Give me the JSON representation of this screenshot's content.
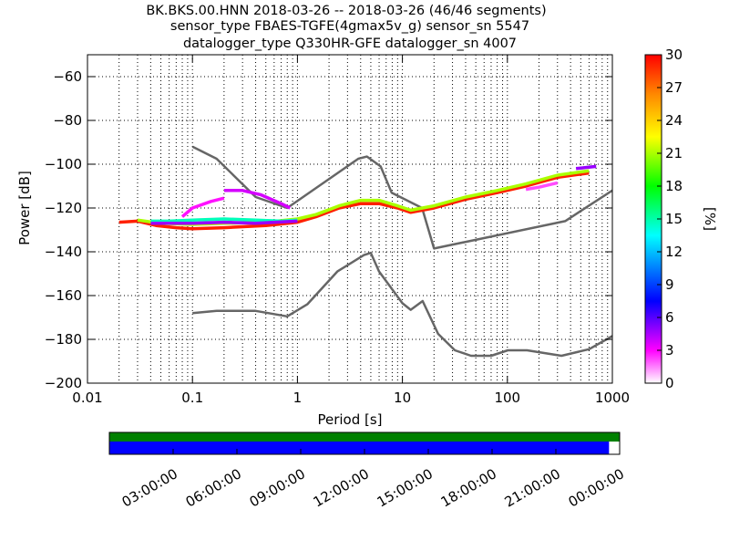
{
  "title": {
    "line1": "BK.BKS.00.HNN   2018-03-26 -- 2018-03-26  (46/46 segments)",
    "line2": "sensor_type FBAES-TGFE(4gmax5v_g) sensor_sn 5547",
    "line3": "datalogger_type Q330HR-GFE datalogger_sn 4007"
  },
  "chart_data": [
    {
      "type": "heatmap",
      "title": "BK.BKS.00.HNN   2018-03-26 -- 2018-03-26  (46/46 segments)",
      "xlabel": "Period [s]",
      "ylabel": "Power [dB]",
      "xscale": "log",
      "xlim": [
        0.01,
        1000
      ],
      "ylim": [
        -200,
        -50
      ],
      "xtick_labels": [
        "0.01",
        "0.1",
        "1",
        "10",
        "100",
        "1000"
      ],
      "xtick_values": [
        0.01,
        0.1,
        1,
        10,
        100,
        1000
      ],
      "ytick_values": [
        -200,
        -180,
        -160,
        -140,
        -120,
        -100,
        -80,
        -60
      ],
      "ytick_labels": [
        "−200",
        "−180",
        "−160",
        "−140",
        "−120",
        "−100",
        "−80",
        "−60"
      ],
      "grid": "dotted",
      "colorbar": {
        "label": "[%]",
        "range": [
          0,
          30
        ],
        "tick_values": [
          0,
          3,
          6,
          9,
          12,
          15,
          18,
          21,
          24,
          27,
          30
        ],
        "tick_labels": [
          "0",
          "3",
          "6",
          "9",
          "12",
          "15",
          "18",
          "21",
          "24",
          "27",
          "30"
        ]
      },
      "noise_models": [
        {
          "points": [
            [
              0.1,
              -92
            ],
            [
              0.17,
              -97.5
            ],
            [
              0.4,
              -115
            ],
            [
              0.8,
              -120
            ],
            [
              3.8,
              -97.5
            ],
            [
              4.6,
              -96.5
            ],
            [
              6.2,
              -101
            ],
            [
              7.9,
              -113
            ],
            [
              15.4,
              -120
            ],
            [
              20,
              -138.5
            ],
            [
              354.8,
              -126
            ],
            [
              1000,
              -112
            ]
          ]
        },
        {
          "points": [
            [
              0.1,
              -168
            ],
            [
              0.17,
              -167
            ],
            [
              0.4,
              -167
            ],
            [
              0.8,
              -169.5
            ],
            [
              1.24,
              -164
            ],
            [
              2.4,
              -149
            ],
            [
              4.3,
              -141.5
            ],
            [
              5,
              -140.5
            ],
            [
              6,
              -149
            ],
            [
              10,
              -163.5
            ],
            [
              12,
              -166.5
            ],
            [
              15.6,
              -162.5
            ],
            [
              21.9,
              -177.5
            ],
            [
              31.6,
              -185
            ],
            [
              45,
              -187.5
            ],
            [
              70,
              -187.5
            ],
            [
              101,
              -185
            ],
            [
              154,
              -185
            ],
            [
              328,
              -187.5
            ],
            [
              600,
              -184.5
            ],
            [
              1000,
              -178.5
            ]
          ]
        }
      ],
      "psd_bands": [
        {
          "color_pct": 29,
          "points": [
            [
              0.02,
              -126.5
            ],
            [
              0.03,
              -126
            ],
            [
              0.045,
              -128
            ],
            [
              0.07,
              -129
            ],
            [
              0.1,
              -129.5
            ],
            [
              0.2,
              -129
            ],
            [
              0.5,
              -128
            ],
            [
              1,
              -126.5
            ],
            [
              1.5,
              -124
            ],
            [
              2.5,
              -120
            ],
            [
              4,
              -118
            ],
            [
              6,
              -118
            ],
            [
              9,
              -120
            ],
            [
              12,
              -122
            ],
            [
              20,
              -120
            ],
            [
              40,
              -116
            ],
            [
              80,
              -113
            ],
            [
              150,
              -110
            ],
            [
              300,
              -106
            ],
            [
              600,
              -104
            ]
          ]
        },
        {
          "color_pct": 20,
          "points": [
            [
              0.03,
              -125.5
            ],
            [
              0.05,
              -127
            ],
            [
              0.1,
              -127.5
            ],
            [
              0.2,
              -127
            ],
            [
              0.5,
              -126.5
            ],
            [
              1,
              -125
            ],
            [
              1.5,
              -123
            ],
            [
              2.5,
              -119
            ],
            [
              4,
              -116.5
            ],
            [
              6,
              -116.5
            ],
            [
              9,
              -119
            ],
            [
              12,
              -121
            ],
            [
              20,
              -119
            ],
            [
              40,
              -115
            ],
            [
              80,
              -112
            ],
            [
              150,
              -109
            ],
            [
              300,
              -105
            ],
            [
              600,
              -103
            ]
          ]
        },
        {
          "color_pct": 14,
          "points": [
            [
              0.04,
              -126
            ],
            [
              0.06,
              -126
            ],
            [
              0.1,
              -125.5
            ],
            [
              0.2,
              -125
            ],
            [
              0.4,
              -125.5
            ],
            [
              0.7,
              -126
            ],
            [
              1,
              -125.5
            ]
          ]
        },
        {
          "color_pct": 6,
          "points": [
            [
              0.04,
              -127
            ],
            [
              0.1,
              -127
            ],
            [
              0.2,
              -126.5
            ],
            [
              0.4,
              -127
            ],
            [
              1,
              -126
            ]
          ]
        },
        {
          "color_pct": 5,
          "points": [
            [
              0.2,
              -112
            ],
            [
              0.3,
              -112
            ],
            [
              0.45,
              -114
            ],
            [
              0.7,
              -118
            ],
            [
              0.85,
              -120
            ]
          ]
        },
        {
          "color_pct": 4,
          "points": [
            [
              0.08,
              -124
            ],
            [
              0.1,
              -120
            ],
            [
              0.15,
              -117
            ],
            [
              0.2,
              -115.5
            ]
          ]
        },
        {
          "color_pct": 3,
          "points": [
            [
              150,
              -111.5
            ],
            [
              200,
              -110.5
            ],
            [
              300,
              -108.5
            ]
          ]
        },
        {
          "color_pct": 6,
          "points": [
            [
              450,
              -102
            ],
            [
              700,
              -101
            ]
          ]
        }
      ]
    },
    {
      "type": "timeline",
      "tick_labels": [
        "03:00:00",
        "06:00:00",
        "09:00:00",
        "12:00:00",
        "15:00:00",
        "18:00:00",
        "21:00:00",
        "00:00:00"
      ],
      "xlim_hours": [
        0,
        24
      ],
      "tick_hours": [
        3,
        6,
        9,
        12,
        15,
        18,
        21,
        24
      ],
      "bars": [
        {
          "color": "#008000",
          "start_hour": 0,
          "end_hour": 24
        },
        {
          "color": "#0000ff",
          "start_hour": 0,
          "end_hour": 23.5
        }
      ]
    }
  ],
  "colors": {
    "noise_model": "#666666",
    "colormap": [
      "#ffffff",
      "#ff00ff",
      "#0000ff",
      "#00ffff",
      "#00ff00",
      "#ffff00",
      "#ff8800",
      "#ff0000"
    ]
  }
}
